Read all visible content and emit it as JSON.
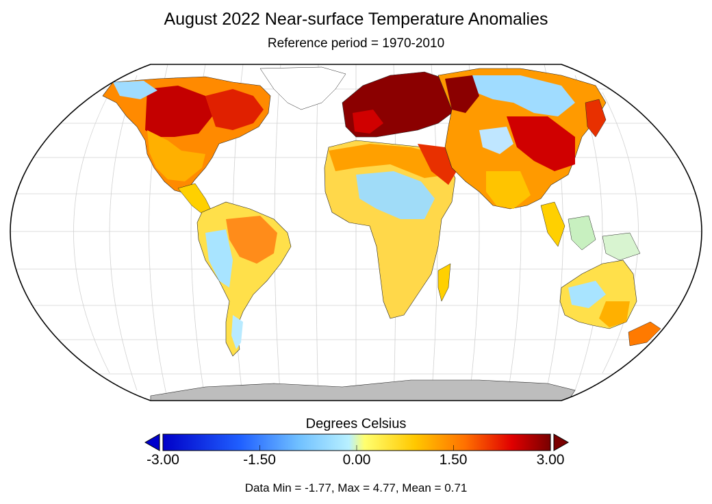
{
  "header": {
    "title": "August 2022 Near-surface Temperature Anomalies",
    "subtitle": "Reference period = 1970-2010"
  },
  "colorbar": {
    "title": "Degrees Celsius",
    "min": -3.0,
    "max": 3.0,
    "tick_labels": [
      "-3.00",
      "-1.50",
      "0.00",
      "1.50",
      "3.00"
    ],
    "colors": [
      "#0000c8",
      "#1e50ff",
      "#4fa8ff",
      "#8fd8ff",
      "#ffff66",
      "#ffcc00",
      "#ff7a00",
      "#e60000",
      "#780000"
    ],
    "extend_low_color": "#0000cc",
    "extend_high_color": "#7a0000"
  },
  "stats": {
    "text": "Data Min = -1.77, Max = 4.77, Mean = 0.71"
  },
  "map": {
    "projection": "Robinson",
    "land_missing_color": "#bdbdbd",
    "graticule": true
  }
}
